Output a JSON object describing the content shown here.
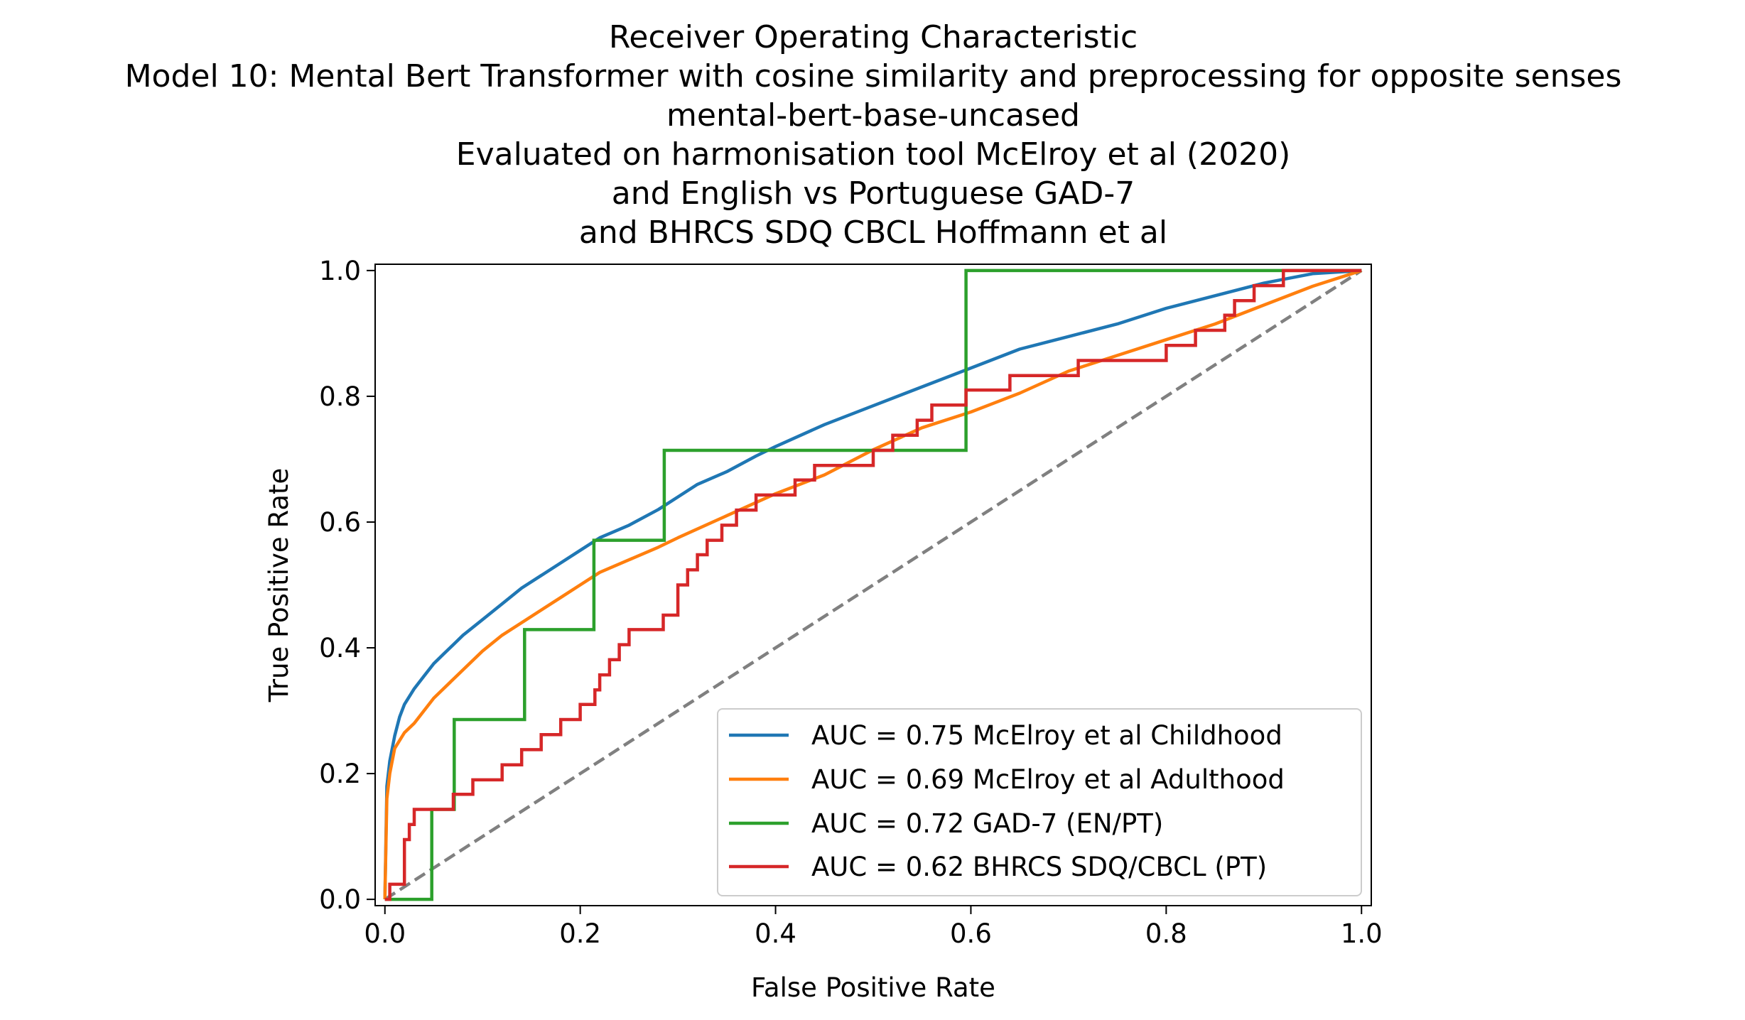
{
  "chart_data": {
    "type": "line",
    "title_lines": [
      "Receiver Operating Characteristic",
      "Model 10: Mental Bert Transformer with cosine similarity and preprocessing for opposite senses",
      "mental-bert-base-uncased",
      "Evaluated on harmonisation tool McElroy et al (2020)",
      "and English vs Portuguese GAD-7",
      "and BHRCS SDQ CBCL Hoffmann et al"
    ],
    "xlabel": "False Positive Rate",
    "ylabel": "True Positive Rate",
    "xlim": [
      0.0,
      1.0
    ],
    "ylim": [
      0.0,
      1.0
    ],
    "x_ticks": [
      "0.0",
      "0.2",
      "0.4",
      "0.6",
      "0.8",
      "1.0"
    ],
    "y_ticks": [
      "0.0",
      "0.2",
      "0.4",
      "0.6",
      "0.8",
      "1.0"
    ],
    "grid": false,
    "legend_position": "bottom-right",
    "series": [
      {
        "name": "AUC = 0.75 McElroy et al Childhood",
        "color": "#1f77b4",
        "step": false,
        "x": [
          0,
          0.002,
          0.005,
          0.01,
          0.015,
          0.02,
          0.03,
          0.04,
          0.05,
          0.06,
          0.07,
          0.08,
          0.1,
          0.12,
          0.14,
          0.16,
          0.18,
          0.2,
          0.22,
          0.25,
          0.28,
          0.3,
          0.32,
          0.35,
          0.38,
          0.4,
          0.45,
          0.5,
          0.55,
          0.6,
          0.65,
          0.7,
          0.75,
          0.8,
          0.85,
          0.9,
          0.95,
          1.0
        ],
        "y": [
          0,
          0.18,
          0.22,
          0.26,
          0.29,
          0.31,
          0.335,
          0.355,
          0.375,
          0.39,
          0.405,
          0.42,
          0.445,
          0.47,
          0.495,
          0.515,
          0.535,
          0.555,
          0.575,
          0.595,
          0.62,
          0.64,
          0.66,
          0.68,
          0.705,
          0.72,
          0.755,
          0.785,
          0.815,
          0.845,
          0.875,
          0.895,
          0.915,
          0.94,
          0.96,
          0.98,
          0.995,
          1.0
        ]
      },
      {
        "name": "AUC = 0.69 McElroy et al Adulthood",
        "color": "#ff7f0e",
        "step": false,
        "x": [
          0,
          0.002,
          0.005,
          0.01,
          0.02,
          0.03,
          0.04,
          0.05,
          0.06,
          0.08,
          0.1,
          0.12,
          0.14,
          0.16,
          0.18,
          0.2,
          0.22,
          0.25,
          0.28,
          0.3,
          0.35,
          0.4,
          0.45,
          0.5,
          0.55,
          0.6,
          0.65,
          0.7,
          0.75,
          0.8,
          0.85,
          0.9,
          0.95,
          1.0
        ],
        "y": [
          0,
          0.16,
          0.2,
          0.24,
          0.265,
          0.28,
          0.3,
          0.32,
          0.335,
          0.365,
          0.395,
          0.42,
          0.44,
          0.46,
          0.48,
          0.5,
          0.52,
          0.54,
          0.56,
          0.575,
          0.61,
          0.645,
          0.675,
          0.715,
          0.75,
          0.775,
          0.805,
          0.84,
          0.865,
          0.89,
          0.915,
          0.945,
          0.975,
          1.0
        ]
      },
      {
        "name": "AUC = 0.72 GAD-7 (EN/PT)",
        "color": "#2ca02c",
        "step": true,
        "x": [
          0,
          0.048,
          0.048,
          0.071,
          0.071,
          0.143,
          0.143,
          0.214,
          0.214,
          0.286,
          0.286,
          0.595,
          0.595,
          1.0
        ],
        "y": [
          0,
          0,
          0.143,
          0.143,
          0.286,
          0.286,
          0.429,
          0.429,
          0.571,
          0.571,
          0.714,
          0.714,
          1.0,
          1.0
        ]
      },
      {
        "name": "AUC = 0.62 BHRCS SDQ/CBCL (PT)",
        "color": "#d62728",
        "step": true,
        "x": [
          0,
          0.005,
          0.005,
          0.02,
          0.02,
          0.025,
          0.025,
          0.03,
          0.03,
          0.04,
          0.04,
          0.07,
          0.07,
          0.09,
          0.09,
          0.12,
          0.12,
          0.14,
          0.14,
          0.16,
          0.16,
          0.18,
          0.18,
          0.2,
          0.2,
          0.215,
          0.215,
          0.22,
          0.22,
          0.23,
          0.23,
          0.24,
          0.24,
          0.25,
          0.25,
          0.285,
          0.285,
          0.3,
          0.3,
          0.31,
          0.31,
          0.32,
          0.32,
          0.33,
          0.33,
          0.345,
          0.345,
          0.36,
          0.36,
          0.38,
          0.38,
          0.42,
          0.42,
          0.44,
          0.44,
          0.5,
          0.5,
          0.52,
          0.52,
          0.545,
          0.545,
          0.56,
          0.56,
          0.595,
          0.595,
          0.64,
          0.64,
          0.71,
          0.71,
          0.8,
          0.8,
          0.83,
          0.83,
          0.86,
          0.86,
          0.87,
          0.87,
          0.89,
          0.89,
          0.92,
          0.92,
          1.0
        ],
        "y": [
          0,
          0,
          0.024,
          0.024,
          0.095,
          0.095,
          0.119,
          0.119,
          0.143,
          0.143,
          0.143,
          0.143,
          0.167,
          0.167,
          0.19,
          0.19,
          0.214,
          0.214,
          0.238,
          0.238,
          0.262,
          0.262,
          0.286,
          0.286,
          0.31,
          0.31,
          0.333,
          0.333,
          0.357,
          0.357,
          0.381,
          0.381,
          0.405,
          0.405,
          0.429,
          0.429,
          0.452,
          0.452,
          0.5,
          0.5,
          0.524,
          0.524,
          0.548,
          0.548,
          0.571,
          0.571,
          0.595,
          0.595,
          0.619,
          0.619,
          0.643,
          0.643,
          0.667,
          0.667,
          0.69,
          0.69,
          0.714,
          0.714,
          0.738,
          0.738,
          0.762,
          0.762,
          0.786,
          0.786,
          0.81,
          0.81,
          0.833,
          0.833,
          0.857,
          0.857,
          0.881,
          0.881,
          0.905,
          0.905,
          0.929,
          0.929,
          0.952,
          0.952,
          0.976,
          0.976,
          1.0,
          1.0
        ]
      }
    ],
    "reference_line": {
      "x": [
        0,
        1
      ],
      "y": [
        0,
        1
      ],
      "color": "#808080",
      "dashed": true
    }
  }
}
